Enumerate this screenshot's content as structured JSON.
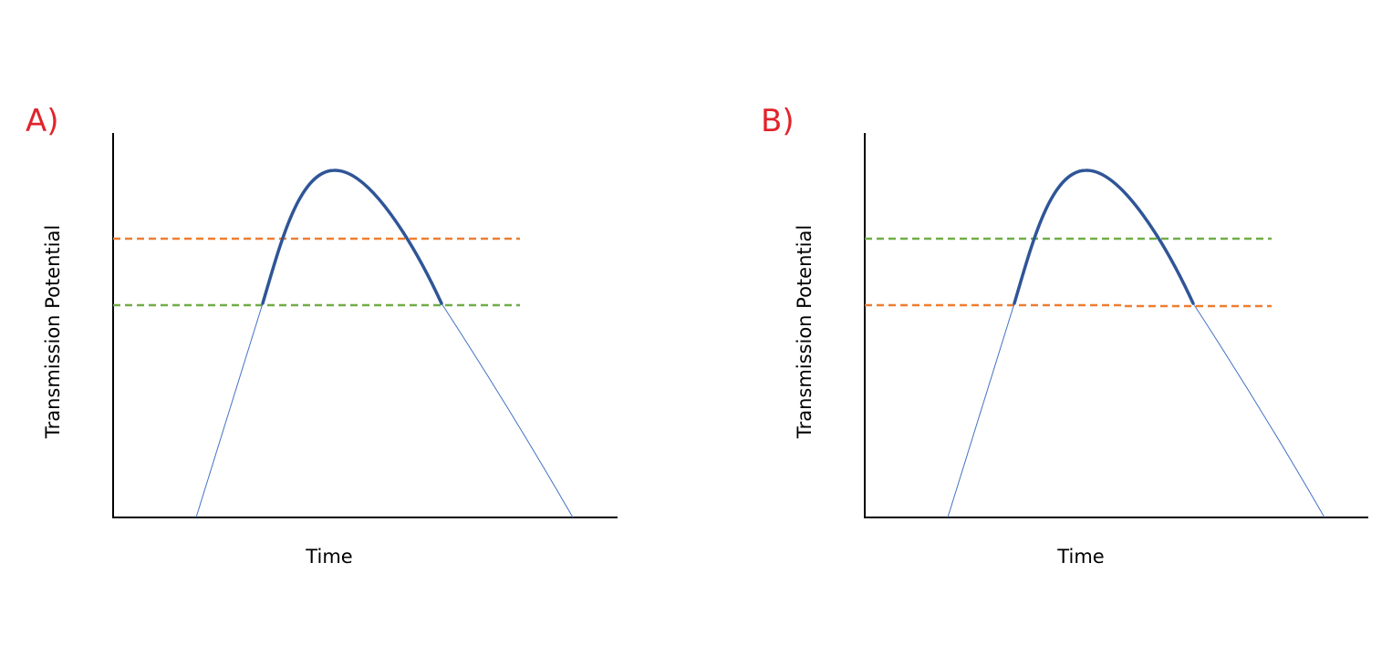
{
  "panels": [
    {
      "label": "A)",
      "ylabel": "Transmission Potential",
      "xlabel": "Time",
      "upper_line_color": "#ed7d31",
      "lower_line_color": "#70ad47",
      "curve_color": "#2f5597",
      "thin_curve_color": "#4472c4"
    },
    {
      "label": "B)",
      "ylabel": "Transmission Potential",
      "xlabel": "Time",
      "upper_line_color": "#70ad47",
      "lower_line_color": "#ed7d31",
      "curve_color": "#2f5597",
      "thin_curve_color": "#4472c4"
    }
  ]
}
